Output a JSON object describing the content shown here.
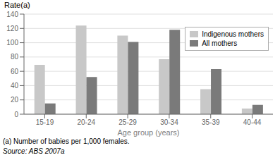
{
  "chart_data": {
    "type": "bar",
    "categories": [
      "15-19",
      "20-24",
      "25-29",
      "30-34",
      "35-39",
      "40-44"
    ],
    "series": [
      {
        "name": "Indigenous mothers",
        "color": "#c8c8c8",
        "values": [
          69,
          124,
          110,
          77,
          35,
          8
        ]
      },
      {
        "name": "All mothers",
        "color": "#7a7a7a",
        "values": [
          15,
          52,
          101,
          118,
          63,
          13
        ]
      }
    ],
    "xlabel": "Age group (years)",
    "ylabel": "Rate(a)",
    "ylim": [
      0,
      140
    ],
    "yticks": [
      0,
      20,
      40,
      60,
      80,
      100,
      120,
      140
    ],
    "grid": true,
    "legend": "upper right",
    "annotations": [
      "(a) Number of babies per 1,000 females.",
      "Source: ABS 2007a"
    ]
  }
}
